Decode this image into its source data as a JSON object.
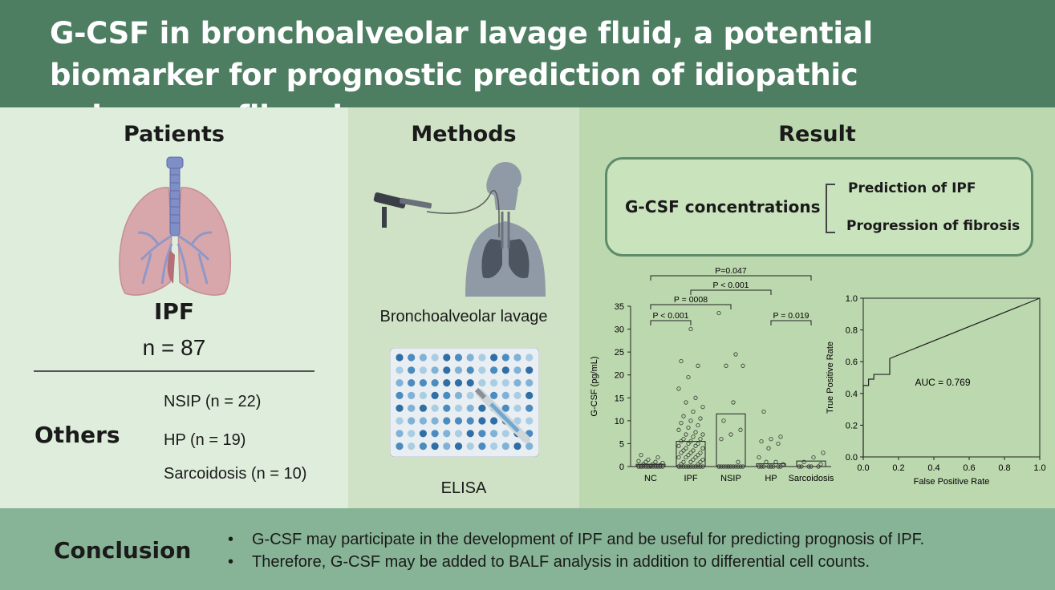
{
  "title": "G-CSF in bronchoalveolar lavage fluid, a potential biomarker for prognostic prediction of idiopathic pulmonary fibrosis",
  "patients": {
    "heading": "Patients",
    "main_group": "IPF",
    "main_n": "n = 87",
    "others_heading": "Others",
    "others": [
      "NSIP (n = 22)",
      "HP (n = 19)",
      "Sarcoidosis (n = 10)"
    ]
  },
  "methods": {
    "heading": "Methods",
    "items": [
      "Bronchoalveolar lavage",
      "ELISA"
    ]
  },
  "result": {
    "heading": "Result",
    "box_label": "G-CSF concentrations",
    "box_items": [
      "Prediction of IPF",
      "Progression of fibrosis"
    ]
  },
  "chart_data": [
    {
      "type": "bar",
      "categories": [
        "NC",
        "IPF",
        "NSIP",
        "HP",
        "Sarcoidosis"
      ],
      "values": [
        0.5,
        5.5,
        11.5,
        0.6,
        1.2
      ],
      "ylabel": "G-CSF (pg/mL)",
      "ylim": [
        0,
        35
      ],
      "yticks": [
        0,
        5,
        10,
        15,
        20,
        25,
        30,
        35
      ],
      "comparisons": [
        {
          "label": "P < 0.001",
          "from": "NC",
          "to": "IPF"
        },
        {
          "label": "P = 0008",
          "from": "NC",
          "to": "NSIP"
        },
        {
          "label": "P < 0.001",
          "from": "IPF",
          "to": "HP"
        },
        {
          "label": "P=0.047",
          "from": "NC",
          "to": "Sarcoidosis"
        },
        {
          "label": "P = 0.019",
          "from": "HP",
          "to": "Sarcoidosis"
        }
      ],
      "points": {
        "NC": [
          0,
          0,
          0,
          0,
          0,
          0,
          0,
          0,
          0,
          0,
          0,
          0,
          0,
          0,
          0,
          0.2,
          0.3,
          0.5,
          0.5,
          0.8,
          1,
          1,
          1.2,
          1.5,
          2,
          2.5
        ],
        "IPF": [
          0,
          0,
          0,
          0,
          0,
          0,
          0,
          0,
          0,
          0,
          0,
          0,
          0,
          0.5,
          0.5,
          1,
          1,
          1,
          1.5,
          1.5,
          2,
          2,
          2,
          2.5,
          2.5,
          3,
          3,
          3,
          3.5,
          3.5,
          4,
          4,
          4.5,
          4.5,
          5,
          5,
          5.5,
          5.5,
          6,
          6,
          6.5,
          7,
          7,
          7.5,
          8,
          8.5,
          9,
          9.5,
          10,
          10.5,
          11,
          12,
          13,
          14,
          15,
          17,
          19.5,
          22,
          23,
          30
        ],
        "NSIP": [
          0,
          0,
          0,
          0,
          0,
          0,
          0,
          0,
          0,
          0,
          0,
          0,
          0,
          1,
          6,
          7,
          8,
          10,
          14,
          22,
          22,
          24.5,
          33.5
        ],
        "HP": [
          0,
          0,
          0,
          0,
          0,
          0,
          0,
          0,
          0.5,
          1,
          1,
          2,
          4,
          5,
          5.5,
          6,
          6.5,
          12
        ],
        "Sarcoidosis": [
          0,
          0,
          0,
          0,
          0,
          0.5,
          1,
          2,
          3
        ]
      }
    },
    {
      "type": "line",
      "xlabel": "False Positive Rate",
      "ylabel": "True Positive Rate",
      "xlim": [
        0,
        1
      ],
      "ylim": [
        0,
        1
      ],
      "xticks": [
        "0.0",
        "0.2",
        "0.4",
        "0.6",
        "0.8",
        "1.0"
      ],
      "yticks": [
        "0.0",
        "0.2",
        "0.4",
        "0.6",
        "0.8",
        "1.0"
      ],
      "x": [
        0,
        0,
        0.03,
        0.03,
        0.06,
        0.06,
        0.15,
        0.15,
        1.0
      ],
      "y": [
        0,
        0.45,
        0.45,
        0.49,
        0.49,
        0.52,
        0.52,
        0.62,
        1.0
      ],
      "annotation": "AUC = 0.769"
    }
  ],
  "conclusion": {
    "heading": "Conclusion",
    "bullets": [
      "G-CSF may participate in the development of IPF and be useful for predicting prognosis of IPF.",
      "Therefore, G-CSF may be added to BALF analysis in addition to differential cell counts."
    ],
    "bullet_symbol": "•"
  }
}
